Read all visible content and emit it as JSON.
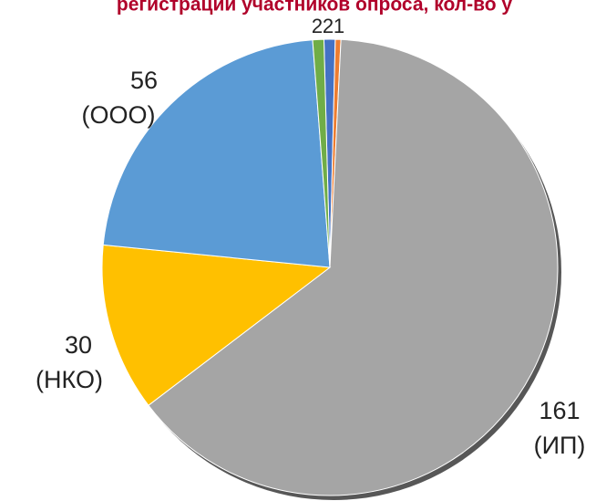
{
  "chart_data": {
    "type": "pie",
    "title": "регистраций участников опроса, кол-во у",
    "categories": [
      null,
      null,
      "(ИП)",
      "(НКО)",
      "(ООО)",
      null
    ],
    "values": [
      2,
      1,
      161,
      30,
      56,
      2
    ],
    "colors": [
      "#4472c4",
      "#ed7d31",
      "#a5a5a5",
      "#ffc000",
      "#5b9bd5",
      "#70ad47"
    ]
  }
}
